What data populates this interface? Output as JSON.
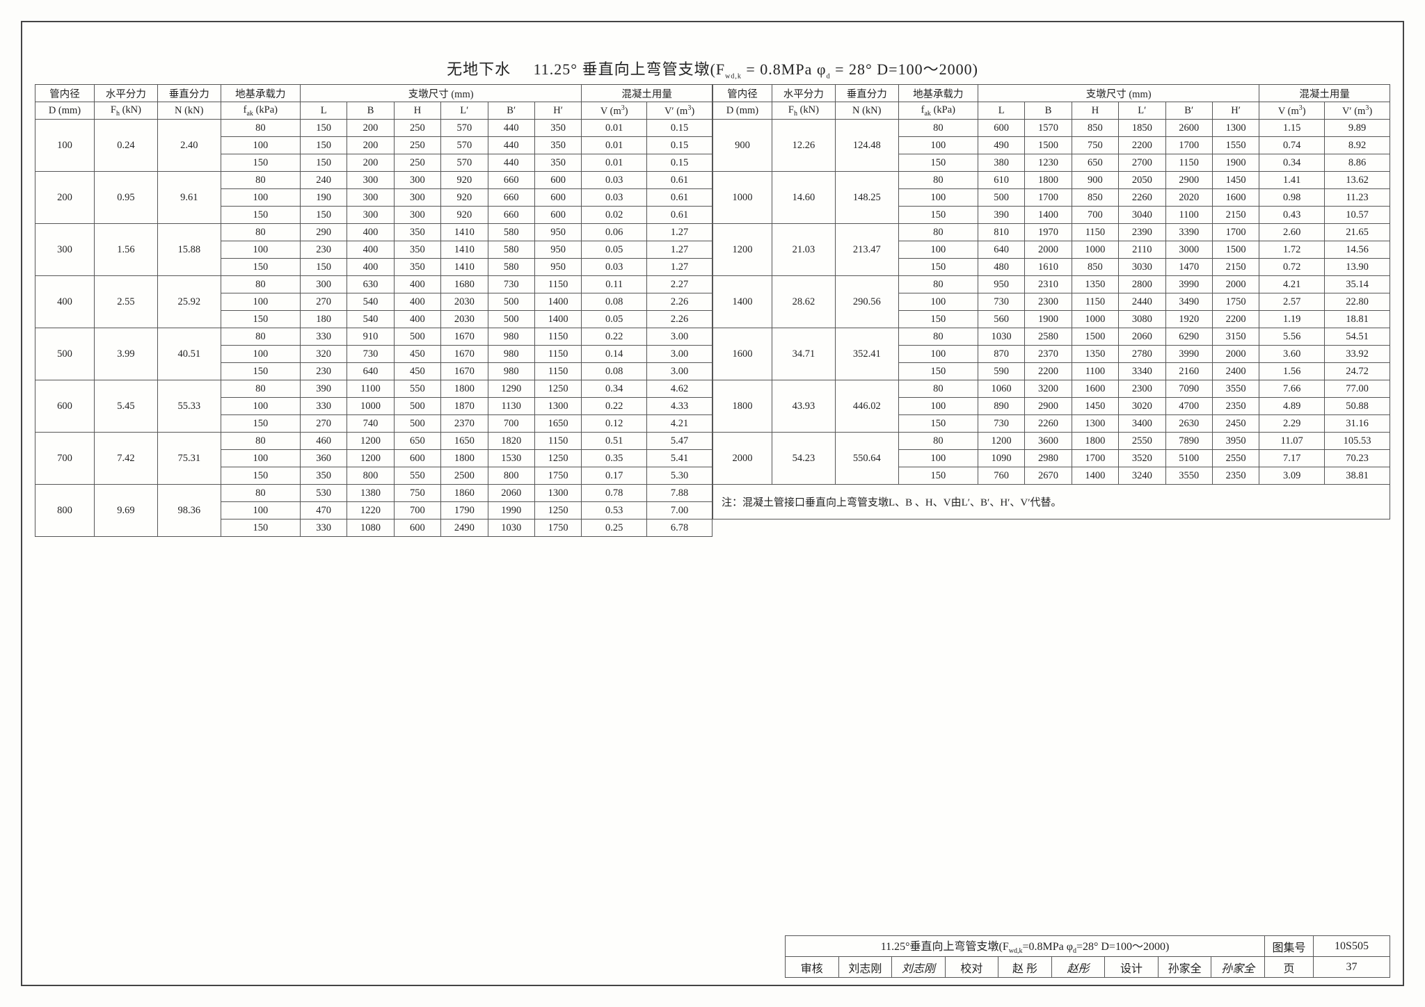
{
  "title_prefix": "无地下水",
  "title_main": "11.25° 垂直向上弯管支墩(F",
  "title_sub1": "wd,k",
  "title_mid1": " = 0.8MPa φ",
  "title_sub2": "d",
  "title_mid2": " = 28° D=100～2000)",
  "header": {
    "c1": "管内径",
    "c2": "水平分力",
    "c3": "垂直分力",
    "c4": "地基承载力",
    "c5": "支墩尺寸 (mm)",
    "c6": "混凝土用量",
    "r2c1": "D (mm)",
    "r2c2_a": "F",
    "r2c2_b": "h",
    "r2c2_c": " (kN)",
    "r2c3": "N (kN)",
    "r2c4_a": "f",
    "r2c4_b": "ak",
    "r2c4_c": " (kPa)",
    "dL": "L",
    "dB": "B",
    "dH": "H",
    "dLp": "L′",
    "dBp": "B′",
    "dHp": "H′",
    "vV_a": "V (m",
    "vV_b": "3",
    "vV_c": ")",
    "vVp_a": "V′ (m",
    "vVp_b": "3",
    "vVp_c": ")"
  },
  "left_rows": [
    {
      "D": "100",
      "Fh": "0.24",
      "N": "2.40",
      "sub": [
        {
          "fak": "80",
          "L": "150",
          "B": "200",
          "H": "250",
          "Lp": "570",
          "Bp": "440",
          "Hp": "350",
          "V": "0.01",
          "Vp": "0.15"
        },
        {
          "fak": "100",
          "L": "150",
          "B": "200",
          "H": "250",
          "Lp": "570",
          "Bp": "440",
          "Hp": "350",
          "V": "0.01",
          "Vp": "0.15"
        },
        {
          "fak": "150",
          "L": "150",
          "B": "200",
          "H": "250",
          "Lp": "570",
          "Bp": "440",
          "Hp": "350",
          "V": "0.01",
          "Vp": "0.15"
        }
      ]
    },
    {
      "D": "200",
      "Fh": "0.95",
      "N": "9.61",
      "sub": [
        {
          "fak": "80",
          "L": "240",
          "B": "300",
          "H": "300",
          "Lp": "920",
          "Bp": "660",
          "Hp": "600",
          "V": "0.03",
          "Vp": "0.61"
        },
        {
          "fak": "100",
          "L": "190",
          "B": "300",
          "H": "300",
          "Lp": "920",
          "Bp": "660",
          "Hp": "600",
          "V": "0.03",
          "Vp": "0.61"
        },
        {
          "fak": "150",
          "L": "150",
          "B": "300",
          "H": "300",
          "Lp": "920",
          "Bp": "660",
          "Hp": "600",
          "V": "0.02",
          "Vp": "0.61"
        }
      ]
    },
    {
      "D": "300",
      "Fh": "1.56",
      "N": "15.88",
      "sub": [
        {
          "fak": "80",
          "L": "290",
          "B": "400",
          "H": "350",
          "Lp": "1410",
          "Bp": "580",
          "Hp": "950",
          "V": "0.06",
          "Vp": "1.27"
        },
        {
          "fak": "100",
          "L": "230",
          "B": "400",
          "H": "350",
          "Lp": "1410",
          "Bp": "580",
          "Hp": "950",
          "V": "0.05",
          "Vp": "1.27"
        },
        {
          "fak": "150",
          "L": "150",
          "B": "400",
          "H": "350",
          "Lp": "1410",
          "Bp": "580",
          "Hp": "950",
          "V": "0.03",
          "Vp": "1.27"
        }
      ]
    },
    {
      "D": "400",
      "Fh": "2.55",
      "N": "25.92",
      "sub": [
        {
          "fak": "80",
          "L": "300",
          "B": "630",
          "H": "400",
          "Lp": "1680",
          "Bp": "730",
          "Hp": "1150",
          "V": "0.11",
          "Vp": "2.27"
        },
        {
          "fak": "100",
          "L": "270",
          "B": "540",
          "H": "400",
          "Lp": "2030",
          "Bp": "500",
          "Hp": "1400",
          "V": "0.08",
          "Vp": "2.26"
        },
        {
          "fak": "150",
          "L": "180",
          "B": "540",
          "H": "400",
          "Lp": "2030",
          "Bp": "500",
          "Hp": "1400",
          "V": "0.05",
          "Vp": "2.26"
        }
      ]
    },
    {
      "D": "500",
      "Fh": "3.99",
      "N": "40.51",
      "sub": [
        {
          "fak": "80",
          "L": "330",
          "B": "910",
          "H": "500",
          "Lp": "1670",
          "Bp": "980",
          "Hp": "1150",
          "V": "0.22",
          "Vp": "3.00"
        },
        {
          "fak": "100",
          "L": "320",
          "B": "730",
          "H": "450",
          "Lp": "1670",
          "Bp": "980",
          "Hp": "1150",
          "V": "0.14",
          "Vp": "3.00"
        },
        {
          "fak": "150",
          "L": "230",
          "B": "640",
          "H": "450",
          "Lp": "1670",
          "Bp": "980",
          "Hp": "1150",
          "V": "0.08",
          "Vp": "3.00"
        }
      ]
    },
    {
      "D": "600",
      "Fh": "5.45",
      "N": "55.33",
      "sub": [
        {
          "fak": "80",
          "L": "390",
          "B": "1100",
          "H": "550",
          "Lp": "1800",
          "Bp": "1290",
          "Hp": "1250",
          "V": "0.34",
          "Vp": "4.62"
        },
        {
          "fak": "100",
          "L": "330",
          "B": "1000",
          "H": "500",
          "Lp": "1870",
          "Bp": "1130",
          "Hp": "1300",
          "V": "0.22",
          "Vp": "4.33"
        },
        {
          "fak": "150",
          "L": "270",
          "B": "740",
          "H": "500",
          "Lp": "2370",
          "Bp": "700",
          "Hp": "1650",
          "V": "0.12",
          "Vp": "4.21"
        }
      ]
    },
    {
      "D": "700",
      "Fh": "7.42",
      "N": "75.31",
      "sub": [
        {
          "fak": "80",
          "L": "460",
          "B": "1200",
          "H": "650",
          "Lp": "1650",
          "Bp": "1820",
          "Hp": "1150",
          "V": "0.51",
          "Vp": "5.47"
        },
        {
          "fak": "100",
          "L": "360",
          "B": "1200",
          "H": "600",
          "Lp": "1800",
          "Bp": "1530",
          "Hp": "1250",
          "V": "0.35",
          "Vp": "5.41"
        },
        {
          "fak": "150",
          "L": "350",
          "B": "800",
          "H": "550",
          "Lp": "2500",
          "Bp": "800",
          "Hp": "1750",
          "V": "0.17",
          "Vp": "5.30"
        }
      ]
    },
    {
      "D": "800",
      "Fh": "9.69",
      "N": "98.36",
      "sub": [
        {
          "fak": "80",
          "L": "530",
          "B": "1380",
          "H": "750",
          "Lp": "1860",
          "Bp": "2060",
          "Hp": "1300",
          "V": "0.78",
          "Vp": "7.88"
        },
        {
          "fak": "100",
          "L": "470",
          "B": "1220",
          "H": "700",
          "Lp": "1790",
          "Bp": "1990",
          "Hp": "1250",
          "V": "0.53",
          "Vp": "7.00"
        },
        {
          "fak": "150",
          "L": "330",
          "B": "1080",
          "H": "600",
          "Lp": "2490",
          "Bp": "1030",
          "Hp": "1750",
          "V": "0.25",
          "Vp": "6.78"
        }
      ]
    }
  ],
  "right_rows": [
    {
      "D": "900",
      "Fh": "12.26",
      "N": "124.48",
      "sub": [
        {
          "fak": "80",
          "L": "600",
          "B": "1570",
          "H": "850",
          "Lp": "1850",
          "Bp": "2600",
          "Hp": "1300",
          "V": "1.15",
          "Vp": "9.89"
        },
        {
          "fak": "100",
          "L": "490",
          "B": "1500",
          "H": "750",
          "Lp": "2200",
          "Bp": "1700",
          "Hp": "1550",
          "V": "0.74",
          "Vp": "8.92"
        },
        {
          "fak": "150",
          "L": "380",
          "B": "1230",
          "H": "650",
          "Lp": "2700",
          "Bp": "1150",
          "Hp": "1900",
          "V": "0.34",
          "Vp": "8.86"
        }
      ]
    },
    {
      "D": "1000",
      "Fh": "14.60",
      "N": "148.25",
      "sub": [
        {
          "fak": "80",
          "L": "610",
          "B": "1800",
          "H": "900",
          "Lp": "2050",
          "Bp": "2900",
          "Hp": "1450",
          "V": "1.41",
          "Vp": "13.62"
        },
        {
          "fak": "100",
          "L": "500",
          "B": "1700",
          "H": "850",
          "Lp": "2260",
          "Bp": "2020",
          "Hp": "1600",
          "V": "0.98",
          "Vp": "11.23"
        },
        {
          "fak": "150",
          "L": "390",
          "B": "1400",
          "H": "700",
          "Lp": "3040",
          "Bp": "1100",
          "Hp": "2150",
          "V": "0.43",
          "Vp": "10.57"
        }
      ]
    },
    {
      "D": "1200",
      "Fh": "21.03",
      "N": "213.47",
      "sub": [
        {
          "fak": "80",
          "L": "810",
          "B": "1970",
          "H": "1150",
          "Lp": "2390",
          "Bp": "3390",
          "Hp": "1700",
          "V": "2.60",
          "Vp": "21.65"
        },
        {
          "fak": "100",
          "L": "640",
          "B": "2000",
          "H": "1000",
          "Lp": "2110",
          "Bp": "3000",
          "Hp": "1500",
          "V": "1.72",
          "Vp": "14.56"
        },
        {
          "fak": "150",
          "L": "480",
          "B": "1610",
          "H": "850",
          "Lp": "3030",
          "Bp": "1470",
          "Hp": "2150",
          "V": "0.72",
          "Vp": "13.90"
        }
      ]
    },
    {
      "D": "1400",
      "Fh": "28.62",
      "N": "290.56",
      "sub": [
        {
          "fak": "80",
          "L": "950",
          "B": "2310",
          "H": "1350",
          "Lp": "2800",
          "Bp": "3990",
          "Hp": "2000",
          "V": "4.21",
          "Vp": "35.14"
        },
        {
          "fak": "100",
          "L": "730",
          "B": "2300",
          "H": "1150",
          "Lp": "2440",
          "Bp": "3490",
          "Hp": "1750",
          "V": "2.57",
          "Vp": "22.80"
        },
        {
          "fak": "150",
          "L": "560",
          "B": "1900",
          "H": "1000",
          "Lp": "3080",
          "Bp": "1920",
          "Hp": "2200",
          "V": "1.19",
          "Vp": "18.81"
        }
      ]
    },
    {
      "D": "1600",
      "Fh": "34.71",
      "N": "352.41",
      "sub": [
        {
          "fak": "80",
          "L": "1030",
          "B": "2580",
          "H": "1500",
          "Lp": "2060",
          "Bp": "6290",
          "Hp": "3150",
          "V": "5.56",
          "Vp": "54.51"
        },
        {
          "fak": "100",
          "L": "870",
          "B": "2370",
          "H": "1350",
          "Lp": "2780",
          "Bp": "3990",
          "Hp": "2000",
          "V": "3.60",
          "Vp": "33.92"
        },
        {
          "fak": "150",
          "L": "590",
          "B": "2200",
          "H": "1100",
          "Lp": "3340",
          "Bp": "2160",
          "Hp": "2400",
          "V": "1.56",
          "Vp": "24.72"
        }
      ]
    },
    {
      "D": "1800",
      "Fh": "43.93",
      "N": "446.02",
      "sub": [
        {
          "fak": "80",
          "L": "1060",
          "B": "3200",
          "H": "1600",
          "Lp": "2300",
          "Bp": "7090",
          "Hp": "3550",
          "V": "7.66",
          "Vp": "77.00"
        },
        {
          "fak": "100",
          "L": "890",
          "B": "2900",
          "H": "1450",
          "Lp": "3020",
          "Bp": "4700",
          "Hp": "2350",
          "V": "4.89",
          "Vp": "50.88"
        },
        {
          "fak": "150",
          "L": "730",
          "B": "2260",
          "H": "1300",
          "Lp": "3400",
          "Bp": "2630",
          "Hp": "2450",
          "V": "2.29",
          "Vp": "31.16"
        }
      ]
    },
    {
      "D": "2000",
      "Fh": "54.23",
      "N": "550.64",
      "sub": [
        {
          "fak": "80",
          "L": "1200",
          "B": "3600",
          "H": "1800",
          "Lp": "2550",
          "Bp": "7890",
          "Hp": "3950",
          "V": "11.07",
          "Vp": "105.53"
        },
        {
          "fak": "100",
          "L": "1090",
          "B": "2980",
          "H": "1700",
          "Lp": "3520",
          "Bp": "5100",
          "Hp": "2550",
          "V": "7.17",
          "Vp": "70.23"
        },
        {
          "fak": "150",
          "L": "760",
          "B": "2670",
          "H": "1400",
          "Lp": "3240",
          "Bp": "3550",
          "Hp": "2350",
          "V": "3.09",
          "Vp": "38.81"
        }
      ]
    }
  ],
  "note": "注：混凝土管接口垂直向上弯管支墩L、B 、H、V由L′、B′、H′、V′代替。",
  "footer": {
    "title_a": "11.25°垂直向上弯管支墩(F",
    "title_sub1": "wd,k",
    "title_b": "=0.8MPa φ",
    "title_sub2": "d",
    "title_c": "=28° D=100～2000)",
    "atlas_label": "图集号",
    "atlas_value": "10S505",
    "review_label": "审核",
    "review_name": "刘志刚",
    "review_sig": "刘志刚",
    "proof_label": "校对",
    "proof_name": "赵 彤",
    "proof_sig": "赵彤",
    "design_label": "设计",
    "design_name": "孙家全",
    "design_sig": "孙家全",
    "page_label": "页",
    "page_value": "37"
  }
}
